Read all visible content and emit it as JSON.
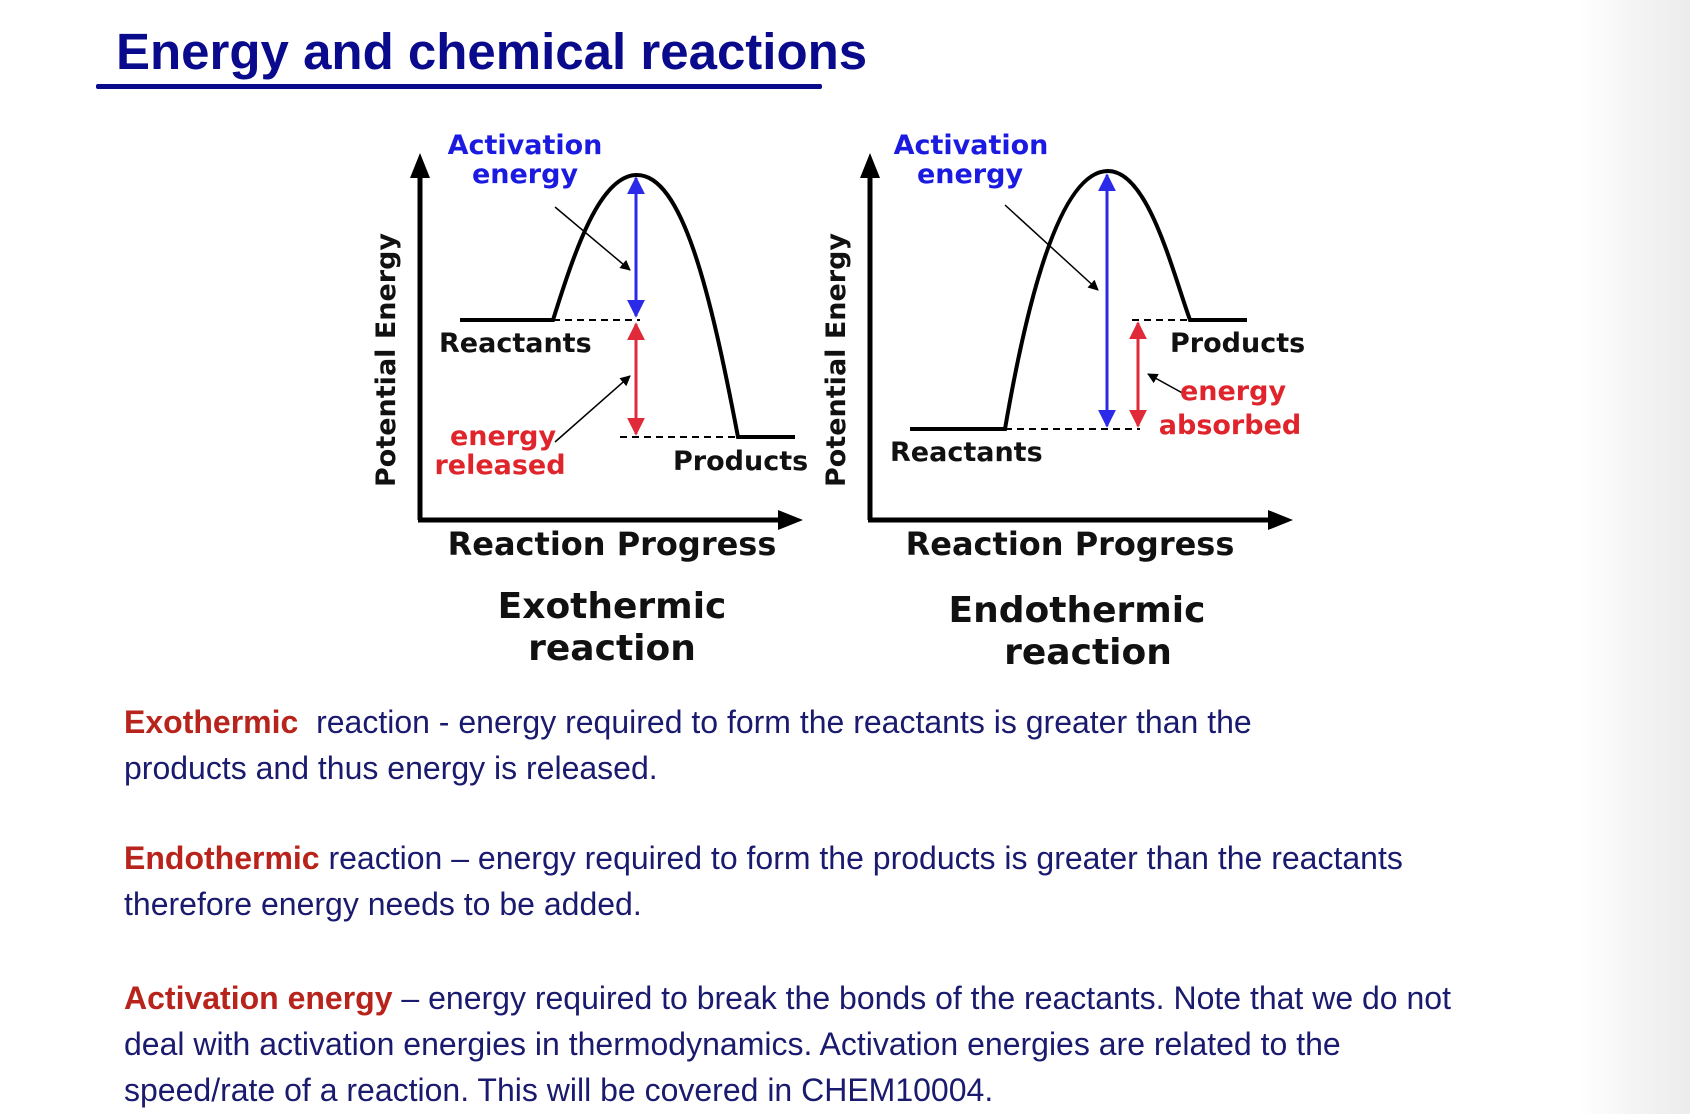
{
  "title": "Energy and chemical reactions",
  "colors": {
    "title": "#0a0a8c",
    "activation_label": "#1a1ae0",
    "energy_label": "#e0242c",
    "term": "#b8231b",
    "body_text": "#1a1a6e",
    "activation_arrow": "#2a2ae8",
    "energy_arrow": "#e02a3a"
  },
  "diagrams": {
    "exothermic": {
      "y_axis_label": "Potential Energy",
      "x_axis_label": "Reaction Progress",
      "activation_line1": "Activation",
      "activation_line2": "energy",
      "reactants": "Reactants",
      "products": "Products",
      "energy_line1": "energy",
      "energy_line2": "released",
      "caption_line1": "Exothermic",
      "caption_line2": "reaction"
    },
    "endothermic": {
      "y_axis_label": "Potential Energy",
      "x_axis_label": "Reaction Progress",
      "activation_line1": "Activation",
      "activation_line2": "energy",
      "reactants": "Reactants",
      "products": "Products",
      "energy_line1": "energy",
      "energy_line2": "absorbed",
      "caption_line1": "Endothermic",
      "caption_line2": "reaction"
    }
  },
  "definitions": [
    {
      "term": "Exothermic",
      "line1": "  reaction - energy required to form the reactants is greater than the",
      "line2": "products and thus energy is released."
    },
    {
      "term": "Endothermic",
      "line1": " reaction – energy required to form the products is greater than the reactants",
      "line2": "therefore energy needs to be added."
    },
    {
      "term": "Activation energy",
      "line1": " – energy required to break the bonds of the reactants. Note that we do not",
      "line2": "deal with activation energies in thermodynamics. Activation energies are related to the",
      "line3": "speed/rate of a reaction. This will be covered in CHEM10004."
    }
  ]
}
